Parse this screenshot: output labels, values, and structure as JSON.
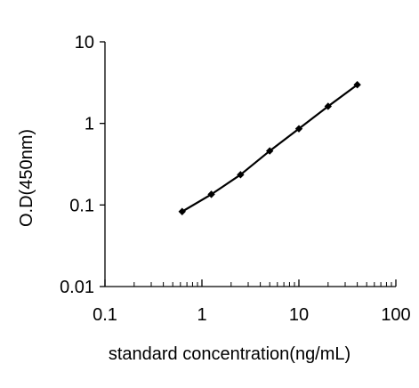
{
  "chart_data": {
    "type": "line",
    "title": "",
    "xlabel": "standard concentration(ng/mL)",
    "ylabel": "O.D(450nm)",
    "xscale": "log",
    "yscale": "log",
    "xlim": [
      0.1,
      100
    ],
    "ylim": [
      0.01,
      10
    ],
    "x_ticks": [
      "0.1",
      "1",
      "10",
      "100"
    ],
    "y_ticks": [
      "0.01",
      "0.1",
      "1",
      "10"
    ],
    "grid": false,
    "legend": "none",
    "marker": "diamond",
    "line_color": "#000000",
    "series": [
      {
        "x": [
          0.625,
          1.25,
          2.5,
          5,
          10,
          20,
          40
        ],
        "y": [
          0.083,
          0.135,
          0.235,
          0.46,
          0.86,
          1.62,
          2.98
        ]
      }
    ]
  }
}
